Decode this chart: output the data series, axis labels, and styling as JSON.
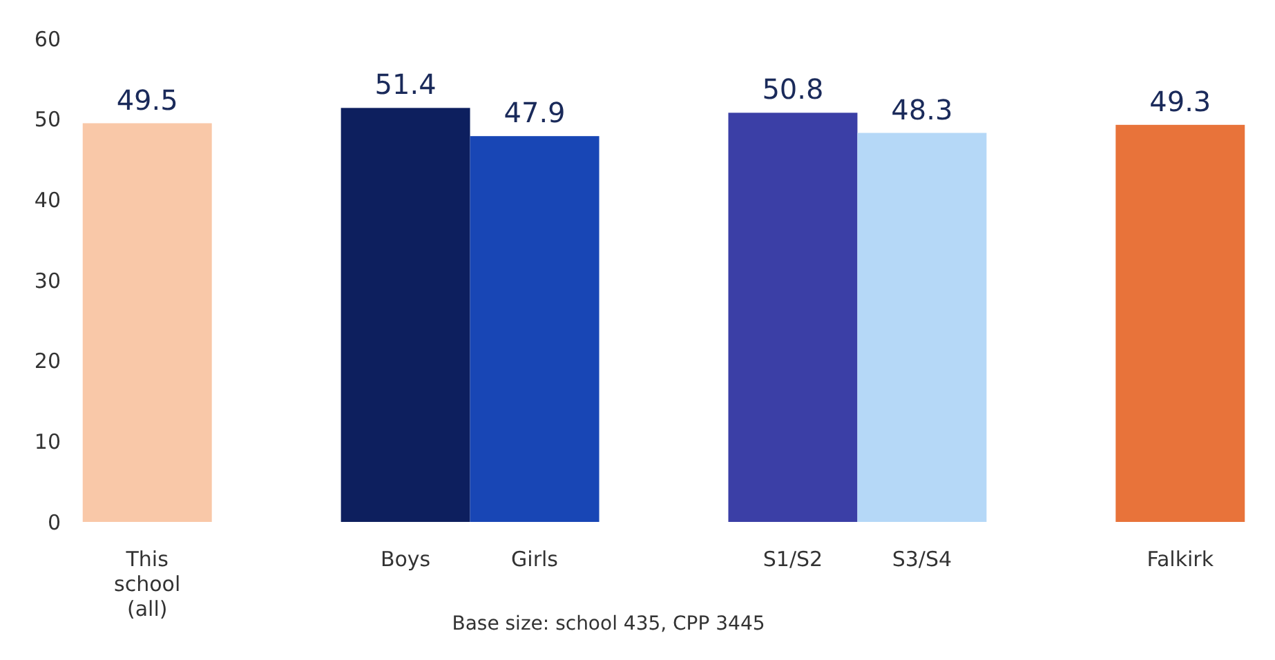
{
  "chart_data": {
    "type": "bar",
    "categories": [
      "This school (all)",
      null,
      "Boys",
      "Girls",
      null,
      "S1/S2",
      "S3/S4",
      null,
      "Falkirk"
    ],
    "values": [
      49.5,
      null,
      51.4,
      47.9,
      null,
      50.8,
      48.3,
      null,
      49.3
    ],
    "colors": [
      "#f9c8a8",
      null,
      "#0d1f5e",
      "#1846b5",
      null,
      "#3b3fa6",
      "#b5d8f7",
      null,
      "#e8733a"
    ],
    "data_labels": true,
    "ylim": [
      0,
      60
    ],
    "yticks": [
      0,
      10,
      20,
      30,
      40,
      50,
      60
    ],
    "grid": false,
    "annotations": [
      "Base size: school 435, CPP 3445"
    ]
  }
}
